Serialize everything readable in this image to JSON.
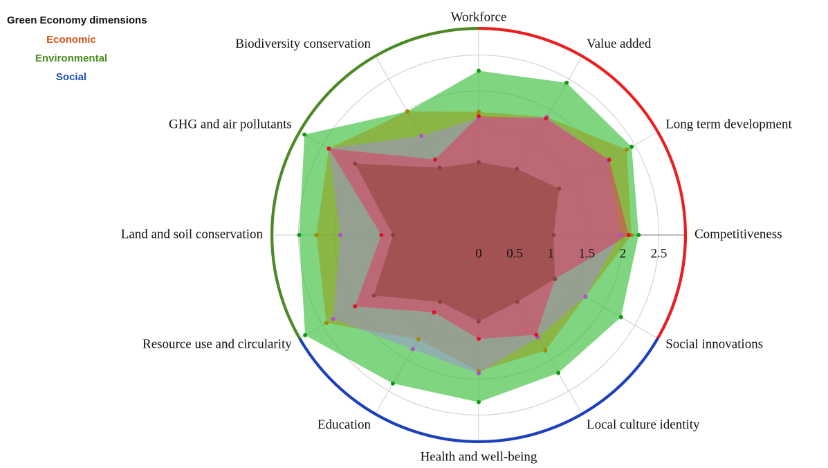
{
  "chart_data": {
    "type": "radar",
    "categories": [
      "Workforce",
      "Value added",
      "Long term development",
      "Competitiveness",
      "Social innovations",
      "Local culture identity",
      "Health and well-being",
      "Education",
      "Resource use and circularity",
      "Land and soil conservation",
      "GHG and air pollutants",
      "Biodiversity conservation"
    ],
    "series": [
      {
        "color": "rgba(60,190,60,0.65)",
        "marker_color": "#119911",
        "values": [
          2.28,
          2.44,
          2.45,
          2.22,
          2.28,
          2.21,
          2.32,
          2.38,
          2.78,
          2.49,
          2.79,
          1.98
        ]
      },
      {
        "color": "rgba(150,150,10,0.5)",
        "marker_color": "#a08a00",
        "values": [
          1.71,
          1.89,
          2.37,
          2.12,
          1.71,
          1.85,
          1.89,
          1.67,
          2.44,
          2.25,
          2.4,
          1.98
        ]
      },
      {
        "color": "rgba(160,140,220,0.5)",
        "marker_color": "#b050d0",
        "values": [
          1.62,
          1.89,
          2.07,
          1.97,
          1.71,
          1.64,
          1.92,
          1.83,
          2.33,
          1.92,
          2.4,
          1.59
        ]
      },
      {
        "color": "rgba(230,50,90,0.5)",
        "marker_color": "#e0102a",
        "values": [
          1.65,
          1.87,
          2.09,
          2.08,
          1.22,
          1.6,
          1.44,
          1.24,
          1.98,
          1.35,
          2.4,
          1.21
        ]
      },
      {
        "color": "rgba(130,55,45,0.45)",
        "marker_color": "#8a4040",
        "values": [
          1.01,
          1.06,
          1.29,
          1.04,
          1.22,
          1.07,
          1.2,
          1.07,
          1.68,
          1.19,
          1.98,
          1.08
        ]
      }
    ],
    "ylim": [
      0,
      2.85
    ],
    "yticks": [
      0,
      0.5,
      1,
      1.5,
      2,
      2.5
    ],
    "grid": true,
    "legend": {
      "title": "Green Economy dimensions",
      "items": [
        {
          "name": "Economic",
          "color": "#d4541a"
        },
        {
          "name": "Environmental",
          "color": "#4a8a22"
        },
        {
          "name": "Social",
          "color": "#1f4fc0"
        }
      ]
    }
  }
}
